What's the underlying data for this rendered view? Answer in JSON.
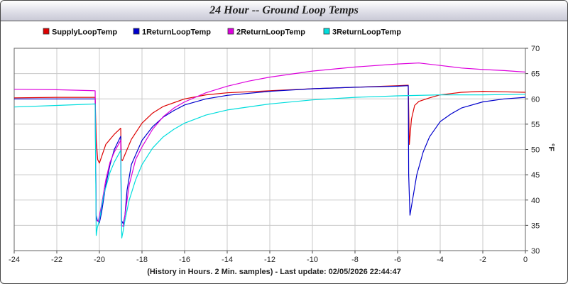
{
  "window": {
    "title": "24 Hour -- Ground Loop Temps"
  },
  "chart_data": {
    "type": "line",
    "title": "24 Hour -- Ground Loop Temps",
    "xlabel": "(History in Hours. 2 Min. samples) - Last update: 02/05/2026 22:44:47",
    "ylabel": "°F",
    "xlim": [
      -24,
      0
    ],
    "ylim": [
      30,
      70
    ],
    "x_ticks": [
      -24,
      -22,
      -20,
      -18,
      -16,
      -14,
      -12,
      -10,
      -8,
      -6,
      -4,
      -2,
      0
    ],
    "y_ticks": [
      30,
      35,
      40,
      45,
      50,
      55,
      60,
      65,
      70
    ],
    "grid": true,
    "legend_position": "top-left",
    "series": [
      {
        "name": "SupplyLoopTemp",
        "color": "#dd0000",
        "points": [
          [
            -24,
            60.2
          ],
          [
            -22,
            60.3
          ],
          [
            -20.2,
            60.3
          ],
          [
            -20.15,
            52
          ],
          [
            -20.08,
            48
          ],
          [
            -20.0,
            47.3
          ],
          [
            -19.7,
            51
          ],
          [
            -19.3,
            53
          ],
          [
            -19.0,
            54.2
          ],
          [
            -18.97,
            48
          ],
          [
            -18.92,
            47.8
          ],
          [
            -18.8,
            49
          ],
          [
            -18.5,
            52
          ],
          [
            -18.0,
            55.2
          ],
          [
            -17.5,
            57.2
          ],
          [
            -17.0,
            58.5
          ],
          [
            -16.0,
            60
          ],
          [
            -15.0,
            60.8
          ],
          [
            -14.0,
            61.2
          ],
          [
            -12.0,
            61.6
          ],
          [
            -10.0,
            62
          ],
          [
            -8.0,
            62.3
          ],
          [
            -6.0,
            62.6
          ],
          [
            -5.5,
            62.7
          ],
          [
            -5.45,
            51
          ],
          [
            -5.35,
            56
          ],
          [
            -5.2,
            58.7
          ],
          [
            -5.0,
            59.5
          ],
          [
            -4.5,
            60.2
          ],
          [
            -4.0,
            60.8
          ],
          [
            -3.0,
            61.3
          ],
          [
            -2.0,
            61.5
          ],
          [
            -1.0,
            61.4
          ],
          [
            0,
            61.3
          ]
        ]
      },
      {
        "name": "1ReturnLoopTemp",
        "color": "#0000cc",
        "points": [
          [
            -24,
            60
          ],
          [
            -22,
            60
          ],
          [
            -20.2,
            60
          ],
          [
            -20.15,
            37
          ],
          [
            -20.1,
            36
          ],
          [
            -20.0,
            35.5
          ],
          [
            -19.9,
            37.5
          ],
          [
            -19.7,
            43
          ],
          [
            -19.5,
            47
          ],
          [
            -19.3,
            50
          ],
          [
            -19.0,
            52.6
          ],
          [
            -18.97,
            36
          ],
          [
            -18.88,
            35.3
          ],
          [
            -18.8,
            37
          ],
          [
            -18.7,
            42
          ],
          [
            -18.5,
            47
          ],
          [
            -18.0,
            51.8
          ],
          [
            -17.5,
            54.5
          ],
          [
            -17.0,
            56.4
          ],
          [
            -16.5,
            57.7
          ],
          [
            -16.0,
            58.8
          ],
          [
            -15.0,
            60
          ],
          [
            -14.0,
            60.7
          ],
          [
            -12.0,
            61.5
          ],
          [
            -10.0,
            62
          ],
          [
            -8.0,
            62.3
          ],
          [
            -6.0,
            62.5
          ],
          [
            -5.5,
            62.6
          ],
          [
            -5.48,
            45
          ],
          [
            -5.42,
            37
          ],
          [
            -5.3,
            40
          ],
          [
            -5.1,
            45
          ],
          [
            -4.8,
            49.5
          ],
          [
            -4.5,
            52.5
          ],
          [
            -4.0,
            55.5
          ],
          [
            -3.5,
            57
          ],
          [
            -3.0,
            58.2
          ],
          [
            -2.0,
            59.4
          ],
          [
            -1.0,
            60
          ],
          [
            0,
            60.3
          ]
        ]
      },
      {
        "name": "2ReturnLoopTemp",
        "color": "#dd00dd",
        "points": [
          [
            -24,
            61.9
          ],
          [
            -22,
            61.8
          ],
          [
            -20.2,
            61.6
          ],
          [
            -20.15,
            36
          ],
          [
            -20.05,
            35.8
          ],
          [
            -19.9,
            39
          ],
          [
            -19.7,
            44
          ],
          [
            -19.5,
            47.5
          ],
          [
            -19.3,
            49.5
          ],
          [
            -19.0,
            51.8
          ],
          [
            -18.97,
            35
          ],
          [
            -18.88,
            34.8
          ],
          [
            -18.8,
            37
          ],
          [
            -18.6,
            43
          ],
          [
            -18.3,
            48
          ],
          [
            -18.0,
            50.5
          ],
          [
            -17.5,
            54
          ],
          [
            -17.0,
            56.5
          ],
          [
            -16.5,
            58.2
          ],
          [
            -16.0,
            59.4
          ],
          [
            -15.0,
            61.2
          ],
          [
            -14.0,
            62.5
          ],
          [
            -13.0,
            63.5
          ],
          [
            -12.0,
            64.3
          ],
          [
            -10.0,
            65.5
          ],
          [
            -8.0,
            66.3
          ],
          [
            -6.0,
            66.9
          ],
          [
            -5.0,
            67.1
          ],
          [
            -4.0,
            66.6
          ],
          [
            -3.0,
            66.1
          ],
          [
            -2.0,
            65.8
          ],
          [
            -1.0,
            65.6
          ],
          [
            0,
            65.3
          ]
        ]
      },
      {
        "name": "3ReturnLoopTemp",
        "color": "#00dddd",
        "points": [
          [
            -24,
            58.4
          ],
          [
            -22,
            58.7
          ],
          [
            -20.2,
            59
          ],
          [
            -20.15,
            33
          ],
          [
            -20.1,
            34.5
          ],
          [
            -20.0,
            36
          ],
          [
            -19.8,
            41
          ],
          [
            -19.5,
            45.5
          ],
          [
            -19.3,
            47.5
          ],
          [
            -19.0,
            49.8
          ],
          [
            -18.95,
            32.5
          ],
          [
            -18.88,
            34
          ],
          [
            -18.8,
            36
          ],
          [
            -18.6,
            40
          ],
          [
            -18.3,
            44
          ],
          [
            -18.0,
            47
          ],
          [
            -17.5,
            50.3
          ],
          [
            -17.0,
            52.5
          ],
          [
            -16.5,
            54
          ],
          [
            -16.0,
            55.2
          ],
          [
            -15.0,
            56.8
          ],
          [
            -14.0,
            57.8
          ],
          [
            -12.0,
            59
          ],
          [
            -10.0,
            59.8
          ],
          [
            -8.0,
            60.3
          ],
          [
            -6.0,
            60.6
          ],
          [
            -4.0,
            60.8
          ],
          [
            -2.0,
            60.8
          ],
          [
            0,
            60.9
          ]
        ]
      }
    ]
  }
}
